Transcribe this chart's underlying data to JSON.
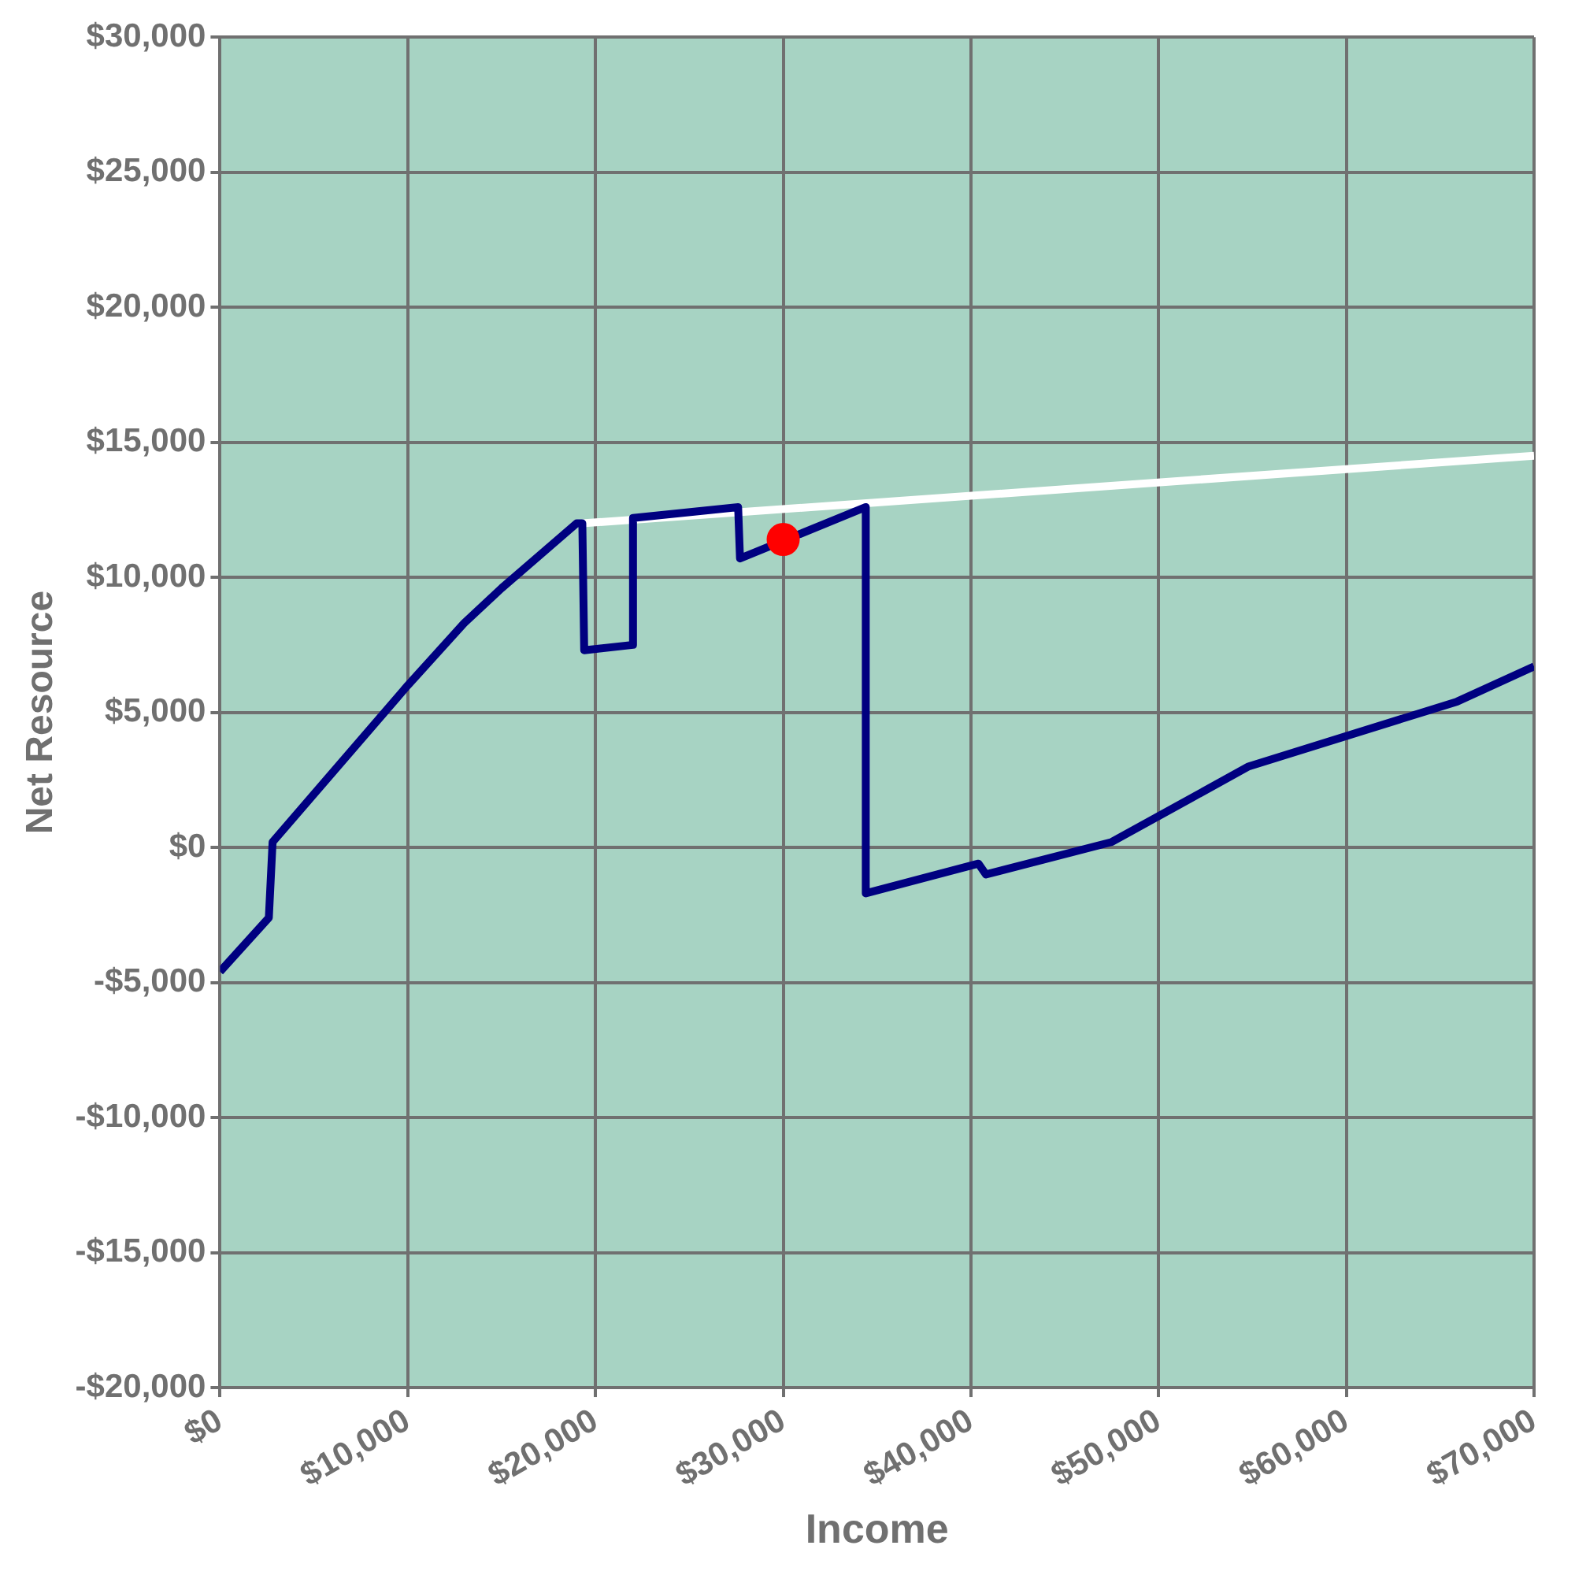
{
  "chart_data": {
    "type": "line",
    "xlabel": "Income",
    "ylabel": "Net Resource",
    "xlim": [
      0,
      70000
    ],
    "xticks": [
      {
        "value": 0,
        "label": "$0"
      },
      {
        "value": 10000,
        "label": "$10,000"
      },
      {
        "value": 20000,
        "label": "$20,000"
      },
      {
        "value": 30000,
        "label": "$30,000"
      },
      {
        "value": 40000,
        "label": "$40,000"
      },
      {
        "value": 50000,
        "label": "$50,000"
      },
      {
        "value": 60000,
        "label": "$60,000"
      },
      {
        "value": 70000,
        "label": "$70,000"
      }
    ],
    "ylim": [
      -20000,
      30000
    ],
    "yticks": [
      {
        "value": -20000,
        "label": "-$20,000"
      },
      {
        "value": -15000,
        "label": "-$15,000"
      },
      {
        "value": -10000,
        "label": "-$10,000"
      },
      {
        "value": -5000,
        "label": "-$5,000"
      },
      {
        "value": 0,
        "label": "$0"
      },
      {
        "value": 5000,
        "label": "$5,000"
      },
      {
        "value": 10000,
        "label": "$10,000"
      },
      {
        "value": 15000,
        "label": "$15,000"
      },
      {
        "value": 20000,
        "label": "$20,000"
      },
      {
        "value": 25000,
        "label": "$25,000"
      },
      {
        "value": 30000,
        "label": "$30,000"
      }
    ],
    "grid": true,
    "legend": false,
    "marker": "none",
    "line_style": "solid",
    "series": [
      {
        "type": "line",
        "color": "#ffffff",
        "x": [
          19300,
          70000
        ],
        "values": [
          12000,
          14500
        ]
      },
      {
        "color": "#000080",
        "x": [
          0,
          2600,
          2800,
          10000,
          13000,
          15000,
          19000,
          19300,
          19400,
          22000,
          22000,
          27600,
          27700,
          34400,
          34400,
          40400,
          40800,
          47500,
          54800,
          65900,
          70000
        ],
        "values": [
          -4600,
          -2600,
          200,
          6000,
          8300,
          9600,
          12000,
          12000,
          7300,
          7500,
          12200,
          12600,
          10700,
          12600,
          -1700,
          -600,
          -1000,
          200,
          3000,
          5400,
          6700
        ]
      },
      {
        "type": "scatter",
        "marker": "circle",
        "color": "#ff0000",
        "x": [
          30000
        ],
        "values": [
          11400
        ]
      }
    ]
  }
}
